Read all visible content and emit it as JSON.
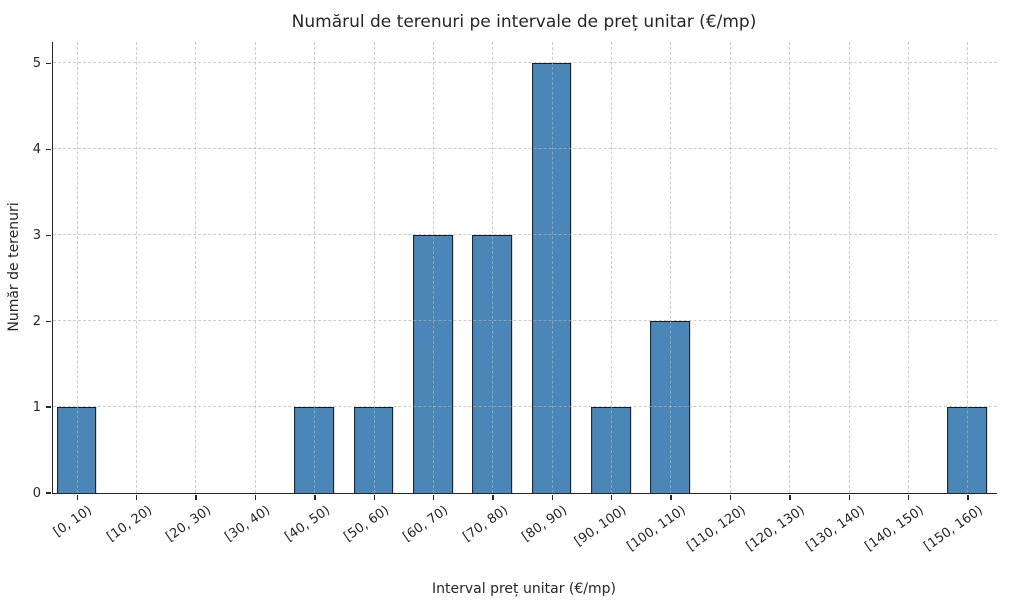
{
  "figure": {
    "background": "#ffffff"
  },
  "chart_data": {
    "type": "bar",
    "title": "Numărul de terenuri pe intervale de preț unitar (€/mp)",
    "xlabel": "Interval preț unitar (€/mp)",
    "ylabel": "Număr de terenuri",
    "categories": [
      "[0, 10)",
      "[10, 20)",
      "[20, 30)",
      "[30, 40)",
      "[40, 50)",
      "[50, 60)",
      "[60, 70)",
      "[70, 80)",
      "[80, 90)",
      "[90, 100)",
      "[100, 110)",
      "[110, 120)",
      "[120, 130)",
      "[130, 140)",
      "[140, 150)",
      "[150, 160)"
    ],
    "values": [
      1,
      0,
      0,
      0,
      1,
      1,
      3,
      3,
      5,
      1,
      2,
      0,
      0,
      0,
      0,
      1
    ],
    "yticks": [
      0,
      1,
      2,
      3,
      4,
      5
    ],
    "ylim": [
      0,
      5.25
    ],
    "grid": "dashed",
    "legend": "none",
    "bar_color": "#4a86b8",
    "bar_edge_color": "#1c1c1c",
    "grid_color": "#b0b0b0"
  }
}
